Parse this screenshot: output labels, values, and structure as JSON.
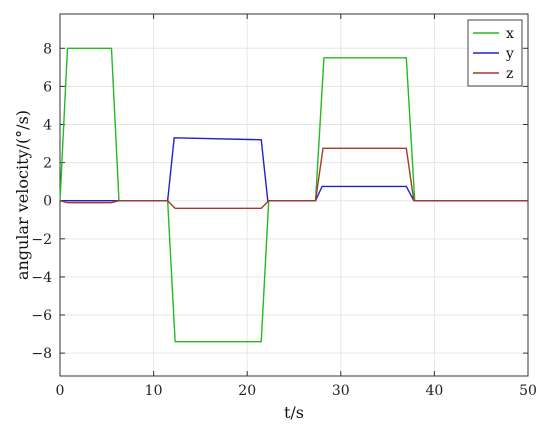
{
  "chart_data": {
    "type": "line",
    "title": "",
    "xlabel": "t/s",
    "ylabel": "angular velocity/(°/s)",
    "xlim": [
      0,
      50
    ],
    "ylim": [
      -9.2,
      9.8
    ],
    "xticks": [
      0,
      10,
      20,
      30,
      40,
      50
    ],
    "yticks": [
      -8,
      -6,
      -4,
      -2,
      0,
      2,
      4,
      6,
      8
    ],
    "grid": true,
    "legend_position": "top-right",
    "series": [
      {
        "name": "x",
        "color": "#22bb22",
        "points": [
          [
            0,
            0
          ],
          [
            0.8,
            8
          ],
          [
            5.5,
            8
          ],
          [
            6.3,
            0
          ],
          [
            11.5,
            0
          ],
          [
            12.3,
            -7.4
          ],
          [
            21.5,
            -7.4
          ],
          [
            22.3,
            0
          ],
          [
            27.3,
            0
          ],
          [
            28.2,
            7.5
          ],
          [
            37,
            7.5
          ],
          [
            37.9,
            0
          ],
          [
            50,
            0
          ]
        ]
      },
      {
        "name": "y",
        "color": "#2222cc",
        "points": [
          [
            0,
            0
          ],
          [
            11.5,
            0
          ],
          [
            12.2,
            3.3
          ],
          [
            21.5,
            3.2
          ],
          [
            22.2,
            0
          ],
          [
            27.3,
            0
          ],
          [
            28,
            0.75
          ],
          [
            37,
            0.75
          ],
          [
            37.8,
            0
          ],
          [
            50,
            0
          ]
        ]
      },
      {
        "name": "z",
        "color": "#a33a2a",
        "points": [
          [
            0,
            0
          ],
          [
            0.8,
            -0.1
          ],
          [
            5.5,
            -0.1
          ],
          [
            6.3,
            0
          ],
          [
            11.5,
            0
          ],
          [
            12.3,
            -0.4
          ],
          [
            21.5,
            -0.4
          ],
          [
            22.3,
            0
          ],
          [
            27.3,
            0
          ],
          [
            28.1,
            2.75
          ],
          [
            37,
            2.75
          ],
          [
            37.8,
            0
          ],
          [
            50,
            0
          ]
        ]
      }
    ]
  }
}
